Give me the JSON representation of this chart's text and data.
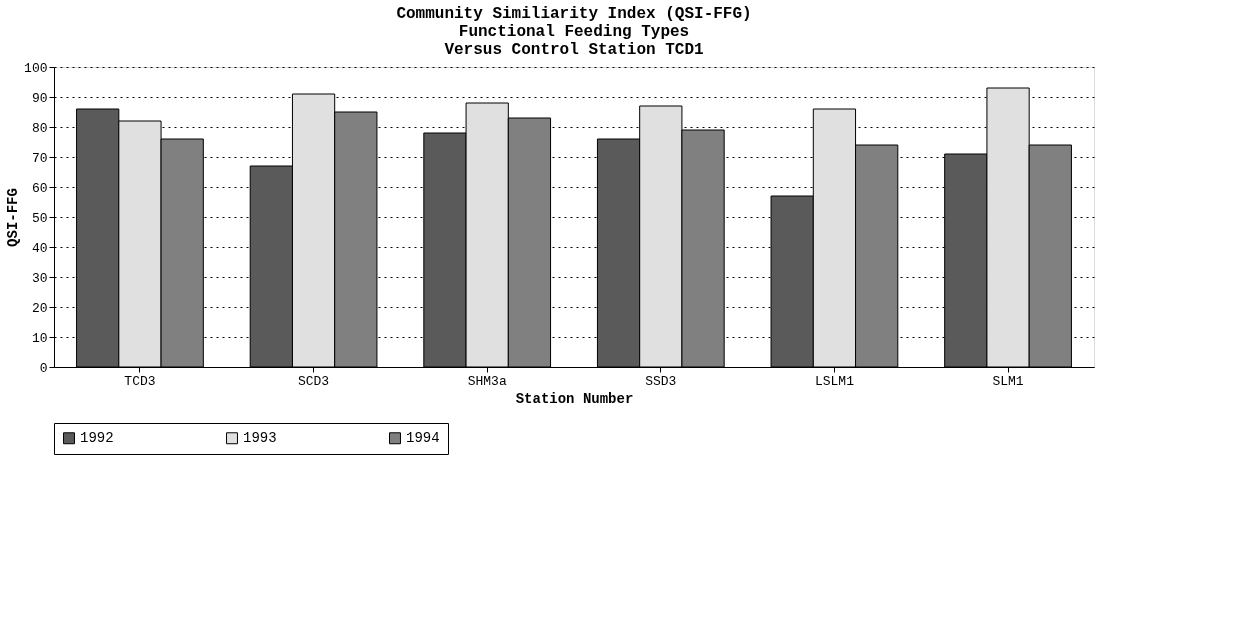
{
  "chart_data": {
    "type": "bar",
    "title": "Community Similiarity Index (QSI-FFG)\nFunctional Feeding Types\nVersus Control Station TCD1",
    "xlabel": "Station Number",
    "ylabel": "QSI-FFG",
    "categories": [
      "TCD3",
      "SCD3",
      "SHM3a",
      "SSD3",
      "LSLM1",
      "SLM1"
    ],
    "series": [
      {
        "name": "1992",
        "color": "#5a5a5a",
        "values": [
          86,
          67,
          78,
          76,
          57,
          71
        ]
      },
      {
        "name": "1993",
        "color": "#e0e0e0",
        "values": [
          82,
          91,
          88,
          87,
          86,
          93
        ]
      },
      {
        "name": "1994",
        "color": "#808080",
        "values": [
          76,
          85,
          83,
          79,
          74,
          74
        ]
      }
    ],
    "ylim": [
      0,
      100
    ],
    "yticks": [
      0,
      10,
      20,
      30,
      40,
      50,
      60,
      70,
      80,
      90,
      100
    ],
    "grid": "y",
    "legend": "bottom"
  }
}
